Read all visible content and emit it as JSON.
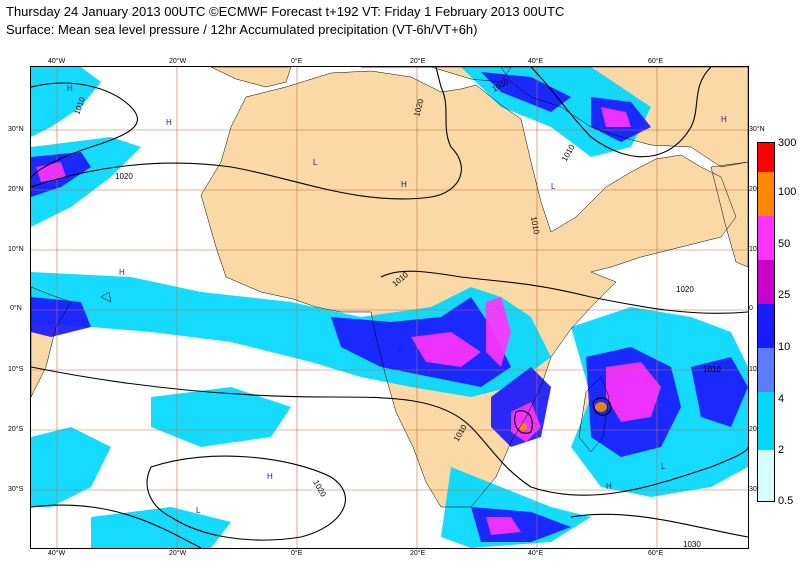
{
  "title_line1": "Thursday 24 January 2013 00UTC ©ECMWF Forecast t+192 VT: Friday 1 February 2013 00UTC",
  "title_line2": "Surface: Mean sea level pressure / 12hr Accumulated precipitation (VT-6h/VT+6h)",
  "lon_ticks": [
    "40°W",
    "20°W",
    "0°E",
    "20°E",
    "40°E",
    "60°E"
  ],
  "lat_ticks": [
    "30°N",
    "20°N",
    "10°N",
    "0°N",
    "10°S",
    "20°S",
    "30°S"
  ],
  "right_lat_ticks": [
    "30°N",
    "20",
    "10",
    "0",
    "10",
    "20",
    "30"
  ],
  "legend": {
    "levels": [
      "300",
      "100",
      "50",
      "25",
      "10",
      "4",
      "2",
      "0.5"
    ],
    "colors": [
      "#ff0000",
      "#ff8800",
      "#ff33ff",
      "#cc00cc",
      "#1a1aff",
      "#5b7cff",
      "#00d8ff",
      "#d6ffff"
    ]
  },
  "isobars": [
    "1010",
    "1020",
    "1020",
    "1010",
    "1010",
    "1010",
    "1010",
    "1020",
    "1020",
    "1030",
    "1010",
    "1010"
  ],
  "pressure_centres": [
    "H",
    "L",
    "H",
    "L",
    "H",
    "L",
    "H",
    "H",
    "L",
    "H",
    "L",
    "H"
  ],
  "colors": {
    "land": "#fbd9a6",
    "ocean": "#ffffff",
    "grid": "#c07040",
    "isobar": "#000000"
  }
}
